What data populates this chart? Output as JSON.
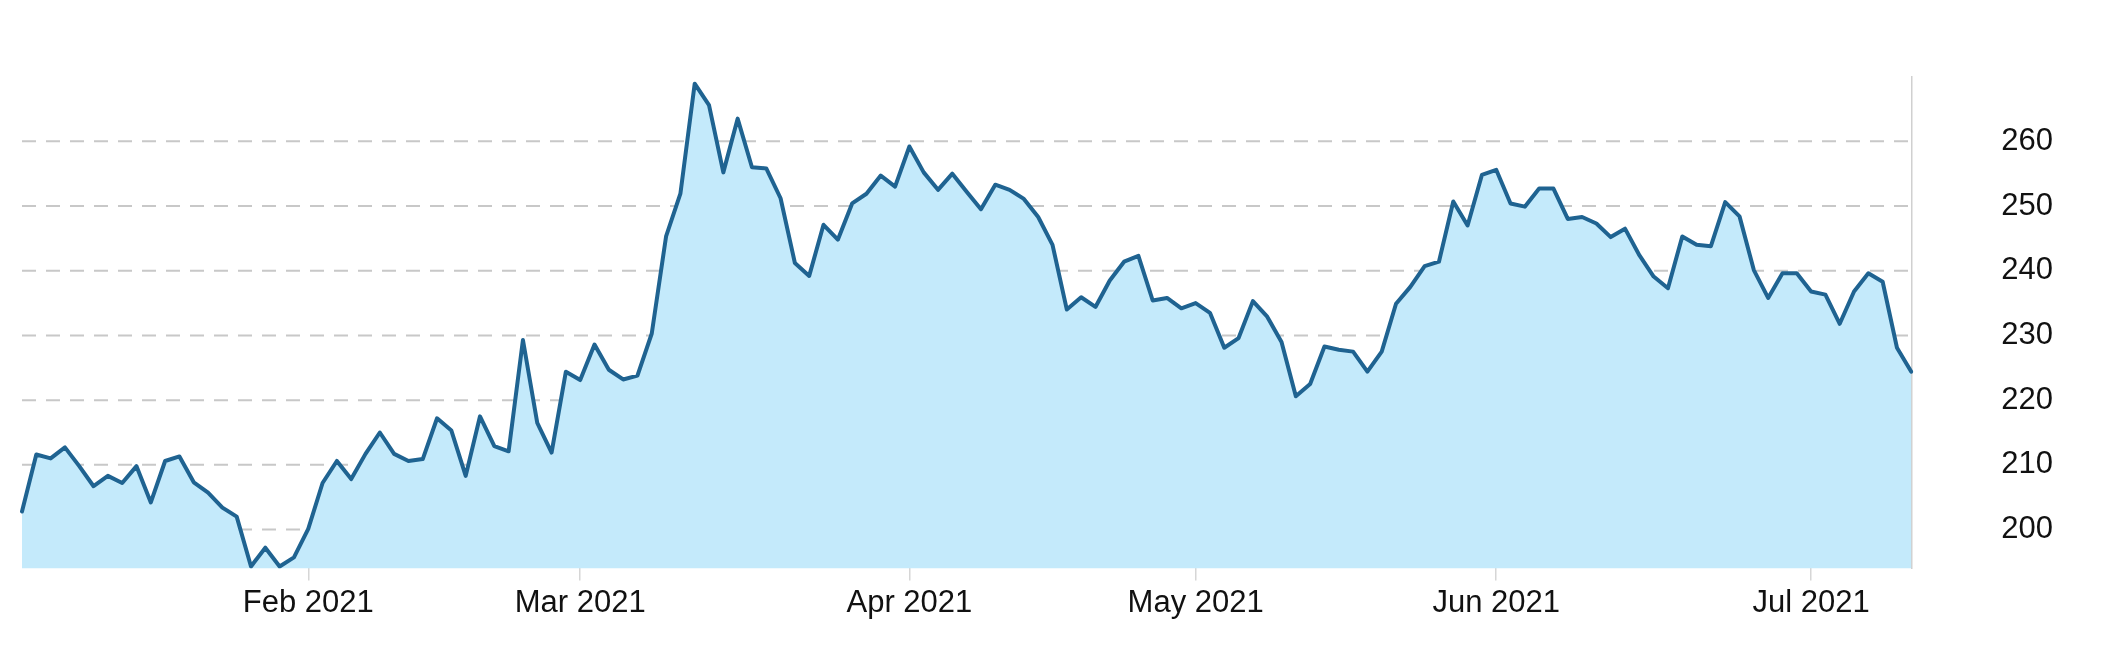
{
  "chart_data": {
    "type": "area",
    "marker": "none",
    "line_style": "solid",
    "grid": "y",
    "legend": false,
    "categories": [
      null,
      null,
      null,
      null,
      null,
      null,
      null,
      null,
      null,
      null,
      null,
      null,
      null,
      null,
      null,
      null,
      null,
      null,
      null,
      null,
      "Feb 2021",
      null,
      null,
      null,
      null,
      null,
      null,
      null,
      null,
      null,
      null,
      null,
      null,
      null,
      null,
      null,
      null,
      null,
      null,
      "Mar 2021",
      null,
      null,
      null,
      null,
      null,
      null,
      null,
      null,
      null,
      null,
      null,
      null,
      null,
      null,
      null,
      null,
      null,
      null,
      null,
      null,
      null,
      null,
      "Apr 2021",
      null,
      null,
      null,
      null,
      null,
      null,
      null,
      null,
      null,
      null,
      null,
      null,
      null,
      null,
      null,
      null,
      null,
      null,
      null,
      "May 2021",
      null,
      null,
      null,
      null,
      null,
      null,
      null,
      null,
      null,
      null,
      null,
      null,
      null,
      null,
      null,
      null,
      null,
      null,
      null,
      null,
      "Jun 2021",
      null,
      null,
      null,
      null,
      null,
      null,
      null,
      null,
      null,
      null,
      null,
      null,
      null,
      null,
      null,
      null,
      null,
      null,
      null,
      null,
      null,
      "Jul 2021",
      null,
      null,
      null,
      null,
      null,
      null,
      null
    ],
    "series": [
      {
        "color": "#1f6391",
        "values": [
          202.8,
          211.6,
          211.0,
          212.7,
          209.8,
          206.7,
          208.3,
          207.2,
          209.8,
          204.2,
          210.6,
          211.3,
          207.3,
          205.7,
          203.4,
          202.0,
          194.3,
          197.2,
          194.3,
          195.7,
          200.1,
          207.2,
          210.6,
          207.8,
          211.7,
          215.0,
          211.7,
          210.6,
          210.9,
          217.2,
          215.3,
          208.3,
          217.5,
          212.9,
          212.1,
          229.3,
          216.5,
          211.9,
          224.4,
          223.1,
          228.6,
          224.7,
          223.2,
          223.8,
          230.3,
          245.3,
          251.9,
          268.9,
          265.6,
          255.2,
          263.5,
          256.0,
          255.8,
          251.2,
          241.2,
          239.2,
          247.1,
          244.8,
          250.4,
          251.9,
          254.7,
          253.0,
          259.2,
          255.2,
          252.5,
          255.0,
          252.2,
          249.5,
          253.3,
          252.5,
          251.1,
          248.3,
          244.0,
          234.0,
          235.9,
          234.4,
          238.5,
          241.4,
          242.3,
          235.4,
          235.8,
          234.2,
          235.0,
          233.5,
          228.1,
          229.6,
          235.3,
          232.9,
          229.0,
          220.6,
          222.5,
          228.3,
          227.8,
          227.5,
          224.4,
          227.5,
          234.9,
          237.5,
          240.7,
          241.4,
          250.7,
          247.0,
          254.8,
          255.6,
          250.4,
          249.9,
          252.7,
          252.7,
          248.0,
          248.3,
          247.3,
          245.2,
          246.5,
          242.4,
          239.1,
          237.3,
          245.3,
          244.0,
          243.8,
          250.6,
          248.4,
          240.1,
          235.8,
          239.6,
          239.6,
          236.8,
          236.3,
          231.8,
          236.8,
          239.6,
          238.3,
          228.1,
          224.4
        ]
      }
    ],
    "ylim": [
      194,
      270
    ],
    "yticks": [
      200,
      210,
      220,
      230,
      240,
      250,
      260
    ]
  }
}
